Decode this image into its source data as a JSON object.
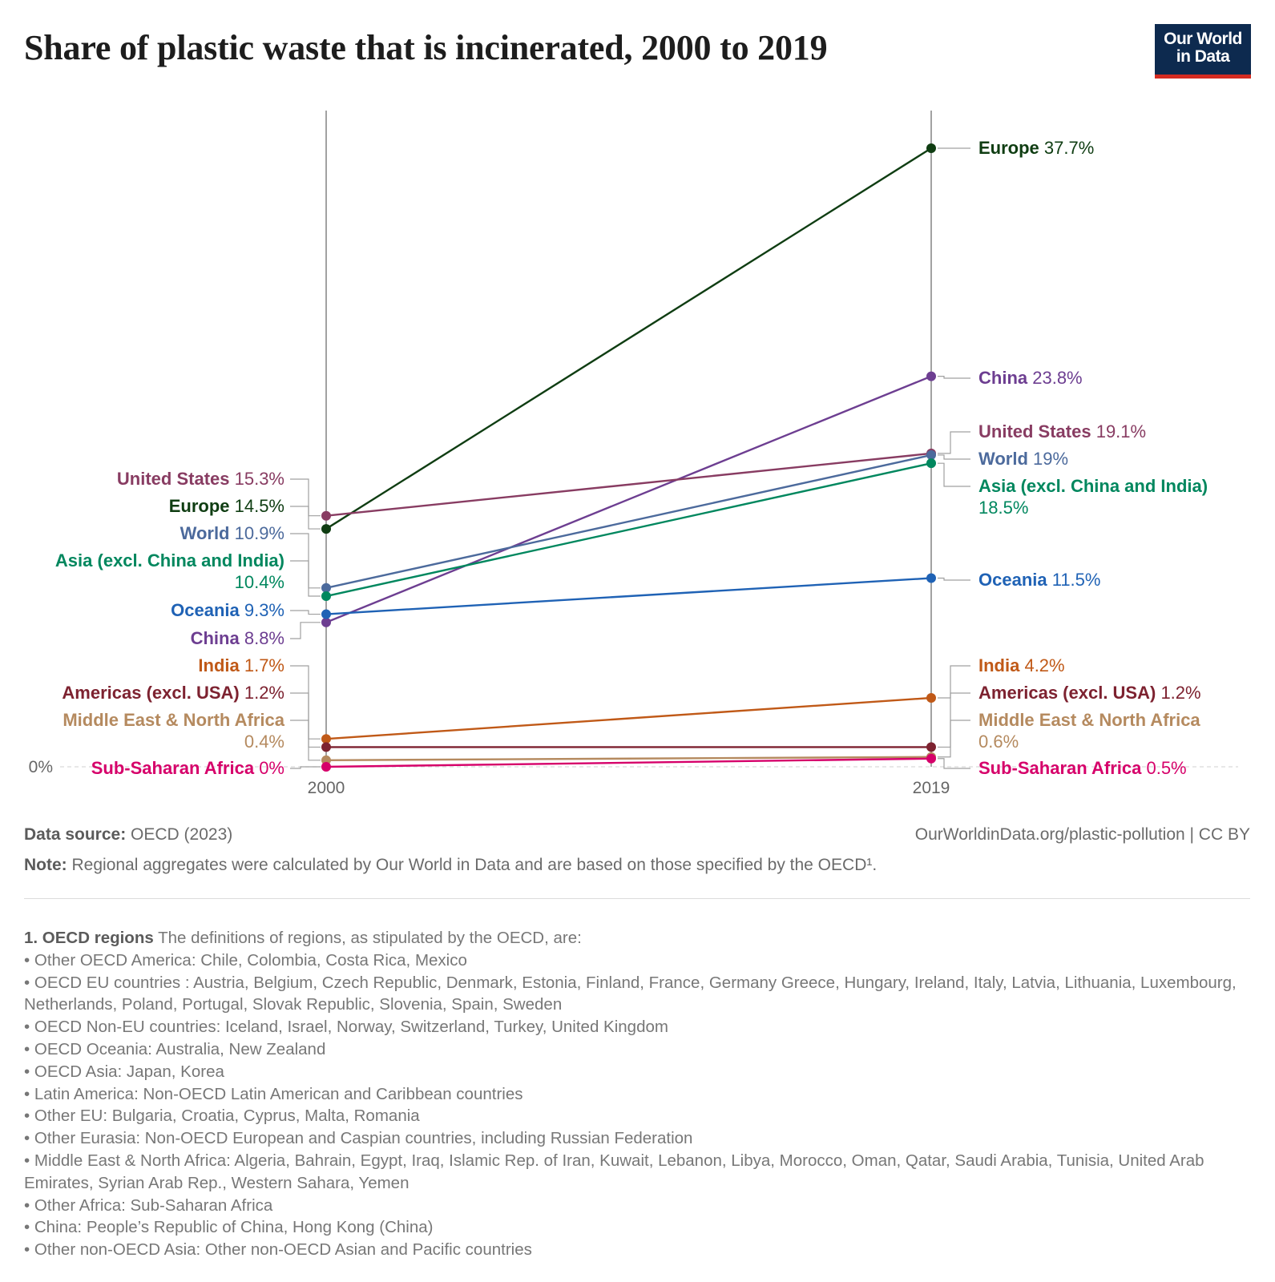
{
  "title": "Share of plastic waste that is incinerated, 2000 to 2019",
  "logo": {
    "line1": "Our World",
    "line2": "in Data"
  },
  "chart_data": {
    "type": "slope",
    "title": "Share of plastic waste that is incinerated, 2000 to 2019",
    "x": [
      "2000",
      "2019"
    ],
    "unit": "%",
    "ylim": [
      0,
      37.7
    ],
    "y_tick_label": "0%",
    "series": [
      {
        "name": "Europe",
        "color": "#0f3d12",
        "values": [
          14.5,
          37.7
        ],
        "labels": [
          "14.5%",
          "37.7%"
        ]
      },
      {
        "name": "China",
        "color": "#6d3e91",
        "values": [
          8.8,
          23.8
        ],
        "labels": [
          "8.8%",
          "23.8%"
        ]
      },
      {
        "name": "United States",
        "color": "#883c62",
        "values": [
          15.3,
          19.1
        ],
        "labels": [
          "15.3%",
          "19.1%"
        ]
      },
      {
        "name": "World",
        "color": "#4c6a9c",
        "values": [
          10.9,
          19
        ],
        "labels": [
          "10.9%",
          "19%"
        ]
      },
      {
        "name": "Asia (excl. China and India)",
        "color": "#00875e",
        "values": [
          10.4,
          18.5
        ],
        "labels": [
          "10.4%",
          "18.5%"
        ]
      },
      {
        "name": "Oceania",
        "color": "#1f62b5",
        "values": [
          9.3,
          11.5
        ],
        "labels": [
          "9.3%",
          "11.5%"
        ]
      },
      {
        "name": "India",
        "color": "#c05917",
        "values": [
          1.7,
          4.2
        ],
        "labels": [
          "1.7%",
          "4.2%"
        ]
      },
      {
        "name": "Americas (excl. USA)",
        "color": "#7d2230",
        "values": [
          1.2,
          1.2
        ],
        "labels": [
          "1.2%",
          "1.2%"
        ]
      },
      {
        "name": "Middle East & North Africa",
        "color": "#b58a5f",
        "values": [
          0.4,
          0.6
        ],
        "labels": [
          "0.4%",
          "0.6%"
        ]
      },
      {
        "name": "Sub-Saharan Africa",
        "color": "#d6006a",
        "values": [
          0,
          0.5
        ],
        "labels": [
          "0%",
          "0.5%"
        ]
      }
    ]
  },
  "footer": {
    "source_label": "Data source:",
    "source_text": " OECD (2023)",
    "url": "OurWorldinData.org/plastic-pollution | CC BY",
    "note_label": "Note:",
    "note_text": " Regional aggregates were calculated by Our World in Data and are based on those specified by the OECD¹."
  },
  "footnote": {
    "head": "1. OECD regions",
    "intro": " The definitions of regions, as stipulated by the OECD, are:",
    "items": [
      "• Other OECD America: Chile, Colombia, Costa Rica, Mexico",
      "• OECD EU countries : Austria, Belgium, Czech Republic, Denmark, Estonia, Finland, France, Germany Greece, Hungary, Ireland, Italy, Latvia, Lithuania, Luxembourg, Netherlands, Poland, Portugal, Slovak Republic, Slovenia, Spain, Sweden",
      "• OECD Non-EU countries: Iceland, Israel, Norway, Switzerland, Turkey, United Kingdom",
      "• OECD Oceania: Australia, New Zealand",
      "• OECD Asia: Japan, Korea",
      "• Latin America: Non-OECD Latin American and Caribbean countries",
      "• Other EU: Bulgaria, Croatia, Cyprus, Malta, Romania",
      "• Other Eurasia: Non-OECD European and Caspian countries, including Russian Federation",
      "• Middle East & North Africa: Algeria, Bahrain, Egypt, Iraq, Islamic Rep. of Iran, Kuwait, Lebanon, Libya, Morocco, Oman, Qatar, Saudi Arabia, Tunisia, United Arab Emirates, Syrian Arab Rep., Western Sahara, Yemen",
      "• Other Africa: Sub-Saharan Africa",
      "• China: People’s Republic of China, Hong Kong (China)",
      "• Other non-OECD Asia: Other non-OECD Asian and Pacific countries"
    ]
  }
}
